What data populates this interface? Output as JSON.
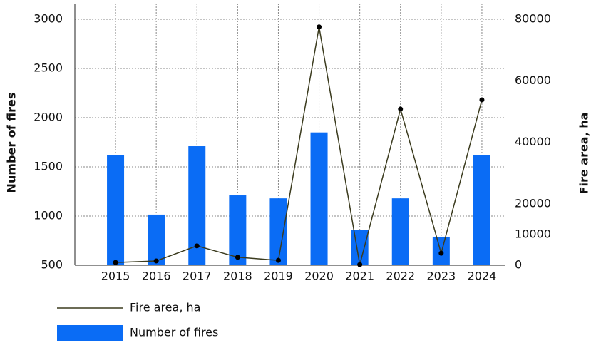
{
  "chart_data": {
    "type": "bar",
    "categories": [
      "2015",
      "2016",
      "2017",
      "2018",
      "2019",
      "2020",
      "2021",
      "2022",
      "2023",
      "2024"
    ],
    "series": [
      {
        "name": "Fire area, ha",
        "type": "line",
        "axis": "y2",
        "color": "#3b3b1e",
        "values": [
          900,
          1400,
          6300,
          2600,
          1600,
          77500,
          200,
          50800,
          3900,
          53800
        ]
      },
      {
        "name": "Number of fires",
        "type": "bar",
        "axis": "y",
        "color": "#0a6cf5",
        "values": [
          1620,
          1015,
          1710,
          1210,
          1180,
          1850,
          860,
          1180,
          790,
          1620
        ]
      }
    ],
    "y_label": "Number of fires",
    "y2_label": "Fire area, ha",
    "ylim": [
      500,
      3000
    ],
    "yticks": [
      500,
      1000,
      1500,
      2000,
      2500,
      3000
    ],
    "y2lim": [
      0,
      80000
    ],
    "y2ticks": [
      0,
      10000,
      20000,
      40000,
      60000,
      80000
    ],
    "grid": true,
    "legend": "bottom"
  }
}
